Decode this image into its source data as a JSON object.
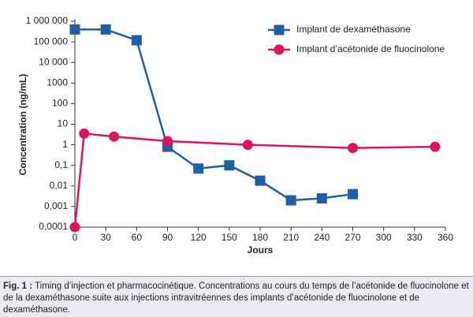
{
  "chart_data": {
    "type": "line",
    "xlabel": "Jours",
    "ylabel": "Concentration (ng/mL)",
    "xlim": [
      0,
      360
    ],
    "xticks": [
      0,
      30,
      60,
      90,
      120,
      150,
      180,
      210,
      240,
      270,
      300,
      330,
      360
    ],
    "ylim": [
      0.0001,
      1000000
    ],
    "log_y": true,
    "yticks": [
      {
        "value": 0.0001,
        "label": "0,0001"
      },
      {
        "value": 0.001,
        "label": "0,001"
      },
      {
        "value": 0.01,
        "label": "0,01"
      },
      {
        "value": 0.1,
        "label": "0,1"
      },
      1,
      10,
      100,
      1000,
      {
        "value": 10000,
        "label": "10 000"
      },
      {
        "value": 100000,
        "label": "100 000"
      },
      {
        "value": 1000000,
        "label": "1 000 000"
      }
    ],
    "legend": "top-right",
    "series": [
      {
        "name": "Implant de dexaméthasone",
        "color": "#1f5fa8",
        "marker": "square",
        "x": [
          0,
          30,
          60,
          90,
          120,
          150,
          180,
          210,
          240,
          270
        ],
        "values": [
          400000,
          400000,
          120000,
          0.8,
          0.07,
          0.1,
          0.018,
          0.002,
          0.0025,
          0.004
        ]
      },
      {
        "name": "Implant d’acétonide de fluocinolone",
        "color": "#e0115f",
        "marker": "circle",
        "x": [
          0,
          9,
          38,
          90,
          168,
          270,
          350
        ],
        "values": [
          0.0001,
          3.5,
          2.5,
          1.5,
          1,
          0.7,
          0.8
        ]
      }
    ]
  },
  "caption": {
    "label": "Fig. 1 :",
    "text": "Timing d’injection et pharmacocinétique. Concentrations au cours du temps de l’acétonide de fluocinolone et de la dexaméthasone suite aux injections intravitréennes des implants d’acétonide de fluocinolone et de dexaméthasone."
  }
}
